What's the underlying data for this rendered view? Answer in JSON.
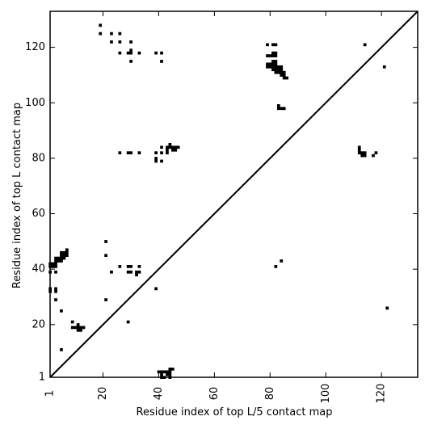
{
  "chart_data": {
    "type": "heatmap",
    "title": "",
    "xlabel": "Residue index of top L/5 contact map",
    "ylabel": "Residue index of top L contact map",
    "xlim": [
      1,
      133
    ],
    "ylim": [
      1,
      133
    ],
    "x_ticks": [
      1,
      20,
      40,
      60,
      80,
      100,
      120
    ],
    "y_ticks": [
      1,
      20,
      40,
      60,
      80,
      100,
      120
    ],
    "grid": false,
    "diagonal": true,
    "colors": {
      "contact": "#000000",
      "background": "#ffffff",
      "frame": "#000000"
    },
    "series": [
      {
        "region": "upper-left",
        "points": [
          [
            19,
            128
          ],
          [
            19,
            125
          ],
          [
            23,
            125
          ],
          [
            23,
            122
          ],
          [
            26,
            125
          ],
          [
            26,
            122
          ],
          [
            26,
            118
          ],
          [
            29,
            118
          ],
          [
            30,
            122
          ],
          [
            30,
            119
          ],
          [
            30,
            118
          ],
          [
            30,
            115
          ],
          [
            33,
            118
          ],
          [
            39,
            118
          ],
          [
            41,
            118
          ],
          [
            41,
            115
          ],
          [
            26,
            82
          ],
          [
            29,
            82
          ],
          [
            30,
            82
          ],
          [
            33,
            82
          ],
          [
            39,
            82
          ],
          [
            39,
            80
          ],
          [
            39,
            79
          ],
          [
            41,
            84
          ],
          [
            41,
            82
          ],
          [
            41,
            79
          ],
          [
            43,
            84
          ],
          [
            43,
            83
          ],
          [
            43,
            82
          ],
          [
            44,
            85
          ],
          [
            44,
            84
          ],
          [
            45,
            84
          ],
          [
            45,
            83
          ],
          [
            46,
            84
          ],
          [
            46,
            83
          ],
          [
            47,
            84
          ],
          [
            21,
            50
          ],
          [
            21,
            45
          ],
          [
            23,
            39
          ],
          [
            26,
            41
          ],
          [
            29,
            41
          ],
          [
            29,
            39
          ],
          [
            30,
            41
          ],
          [
            30,
            39
          ],
          [
            32,
            39
          ],
          [
            32,
            38
          ],
          [
            33,
            41
          ],
          [
            33,
            39
          ],
          [
            39,
            33
          ],
          [
            21,
            29
          ],
          [
            29,
            21
          ],
          [
            1,
            42
          ],
          [
            1,
            41
          ],
          [
            1,
            39
          ],
          [
            1,
            33
          ],
          [
            1,
            32
          ],
          [
            2,
            42
          ],
          [
            2,
            41
          ],
          [
            3,
            44
          ],
          [
            3,
            43
          ],
          [
            3,
            42
          ],
          [
            3,
            41
          ],
          [
            3,
            39
          ],
          [
            3,
            33
          ],
          [
            3,
            32
          ],
          [
            3,
            29
          ],
          [
            4,
            44
          ],
          [
            4,
            43
          ],
          [
            5,
            46
          ],
          [
            5,
            45
          ],
          [
            5,
            44
          ],
          [
            5,
            43
          ],
          [
            5,
            25
          ],
          [
            5,
            11
          ],
          [
            6,
            46
          ],
          [
            6,
            45
          ],
          [
            6,
            44
          ],
          [
            7,
            47
          ],
          [
            7,
            46
          ],
          [
            7,
            45
          ],
          [
            9,
            21
          ],
          [
            9,
            19
          ],
          [
            10,
            19
          ],
          [
            11,
            20
          ],
          [
            11,
            19
          ],
          [
            11,
            18
          ],
          [
            12,
            19
          ],
          [
            12,
            18
          ],
          [
            13,
            19
          ]
        ]
      },
      {
        "region": "upper-right",
        "points": [
          [
            79,
            121
          ],
          [
            79,
            117
          ],
          [
            79,
            114
          ],
          [
            79,
            113
          ],
          [
            80,
            117
          ],
          [
            80,
            114
          ],
          [
            80,
            113
          ],
          [
            81,
            121
          ],
          [
            81,
            118
          ],
          [
            81,
            117
          ],
          [
            81,
            115
          ],
          [
            81,
            114
          ],
          [
            81,
            113
          ],
          [
            81,
            112
          ],
          [
            82,
            121
          ],
          [
            82,
            118
          ],
          [
            82,
            117
          ],
          [
            82,
            115
          ],
          [
            82,
            114
          ],
          [
            82,
            113
          ],
          [
            82,
            112
          ],
          [
            82,
            111
          ],
          [
            83,
            113
          ],
          [
            83,
            112
          ],
          [
            83,
            111
          ],
          [
            84,
            113
          ],
          [
            84,
            112
          ],
          [
            84,
            111
          ],
          [
            84,
            110
          ],
          [
            85,
            111
          ],
          [
            85,
            110
          ],
          [
            85,
            109
          ],
          [
            86,
            109
          ],
          [
            83,
            99
          ],
          [
            83,
            98
          ],
          [
            84,
            98
          ],
          [
            85,
            98
          ],
          [
            82,
            41
          ],
          [
            84,
            43
          ],
          [
            112,
            84
          ],
          [
            112,
            83
          ],
          [
            112,
            82
          ],
          [
            113,
            82
          ],
          [
            113,
            81
          ],
          [
            114,
            82
          ],
          [
            114,
            81
          ],
          [
            114,
            121
          ],
          [
            117,
            81
          ],
          [
            118,
            82
          ],
          [
            121,
            113
          ],
          [
            122,
            26
          ]
        ]
      },
      {
        "region": "lower-diagonal",
        "points": [
          [
            40,
            3
          ],
          [
            41,
            3
          ],
          [
            41,
            2
          ],
          [
            41,
            1
          ],
          [
            42,
            3
          ],
          [
            42,
            1
          ],
          [
            43,
            3
          ],
          [
            43,
            2
          ],
          [
            44,
            4
          ],
          [
            44,
            3
          ],
          [
            44,
            2
          ],
          [
            44,
            1
          ],
          [
            45,
            4
          ]
        ]
      }
    ]
  }
}
